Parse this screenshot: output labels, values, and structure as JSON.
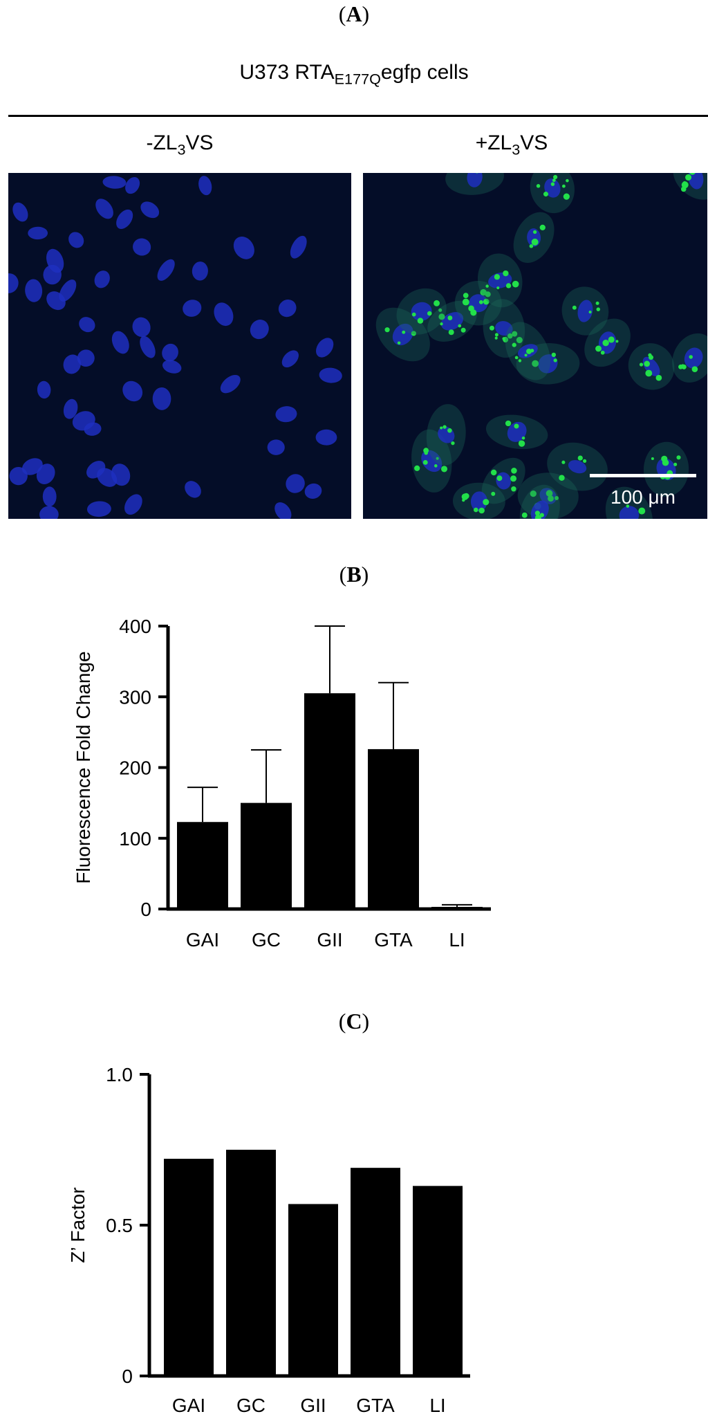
{
  "panelA": {
    "label_letter": "A",
    "title_prefix": "U373 RTA",
    "title_sub": "E177Q",
    "title_suffix": "egfp cells",
    "left": {
      "prefix": "-ZL",
      "sub": "3",
      "suffix": "VS"
    },
    "right": {
      "prefix": "+ZL",
      "sub": "3",
      "suffix": "VS"
    },
    "scale_label": "100 μm",
    "colors": {
      "nuclei": "#1f2fbf",
      "puncta": "#22e04a",
      "background": "#040d28"
    }
  },
  "panelB": {
    "label_letter": "B"
  },
  "panelC": {
    "label_letter": "C"
  },
  "chart_data": [
    {
      "type": "bar",
      "title": "",
      "xlabel": "",
      "ylabel": "Fluorescence Fold Change",
      "categories": [
        "GAI",
        "GC",
        "GII",
        "GTA",
        "LI"
      ],
      "values": [
        123,
        150,
        305,
        226,
        3
      ],
      "error_upper": [
        172,
        225,
        400,
        320,
        6
      ],
      "ylim": [
        0,
        400
      ],
      "yticks": [
        0,
        100,
        200,
        300,
        400
      ],
      "grid": false,
      "bar_color": "#000000"
    },
    {
      "type": "bar",
      "title": "",
      "xlabel": "",
      "ylabel": "Z’ Factor",
      "categories": [
        "GAI",
        "GC",
        "GII",
        "GTA",
        "LI"
      ],
      "values": [
        0.72,
        0.75,
        0.57,
        0.69,
        0.63
      ],
      "ylim": [
        0,
        1.0
      ],
      "yticks": [
        0,
        0.5,
        1.0
      ],
      "ytick_labels": [
        "0",
        "0.5",
        "1.0"
      ],
      "grid": false,
      "bar_color": "#000000"
    }
  ]
}
